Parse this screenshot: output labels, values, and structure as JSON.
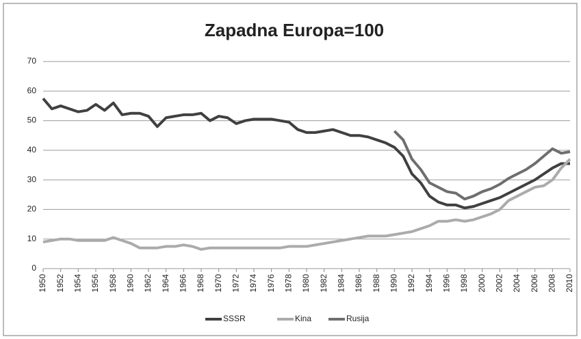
{
  "chart_data": {
    "type": "line",
    "title": "Zapadna Europa=100",
    "x": [
      1950,
      1951,
      1952,
      1953,
      1954,
      1955,
      1956,
      1957,
      1958,
      1959,
      1960,
      1961,
      1962,
      1963,
      1964,
      1965,
      1966,
      1967,
      1968,
      1969,
      1970,
      1971,
      1972,
      1973,
      1974,
      1975,
      1976,
      1977,
      1978,
      1979,
      1980,
      1981,
      1982,
      1983,
      1984,
      1985,
      1986,
      1987,
      1988,
      1989,
      1990,
      1991,
      1992,
      1993,
      1994,
      1995,
      1996,
      1997,
      1998,
      1999,
      2000,
      2001,
      2002,
      2003,
      2004,
      2005,
      2006,
      2007,
      2008,
      2009,
      2010
    ],
    "xlim": [
      1950,
      2010
    ],
    "xticks": [
      1950,
      1952,
      1954,
      1956,
      1958,
      1960,
      1962,
      1964,
      1966,
      1968,
      1970,
      1972,
      1974,
      1976,
      1978,
      1980,
      1982,
      1984,
      1986,
      1988,
      1990,
      1992,
      1994,
      1996,
      1998,
      2000,
      2002,
      2004,
      2006,
      2008,
      2010
    ],
    "ylim": [
      0,
      70
    ],
    "yticks": [
      0,
      10,
      20,
      30,
      40,
      50,
      60,
      70
    ],
    "grid": true,
    "legend": "bottom",
    "series": [
      {
        "name": "SSSR",
        "color": "#404040",
        "values": [
          57.5,
          54,
          55,
          54,
          53,
          53.5,
          55.5,
          53.5,
          56,
          52,
          52.5,
          52.5,
          51.5,
          48,
          51,
          51.5,
          52,
          52,
          52.5,
          50,
          51.5,
          51,
          49,
          50,
          50.5,
          50.5,
          50.5,
          50,
          49.5,
          47,
          46,
          46,
          46.5,
          47,
          46,
          45,
          45,
          44.5,
          43.5,
          42.5,
          41,
          38,
          32,
          29,
          24.5,
          22.5,
          21.5,
          21.5,
          20.5,
          21,
          22,
          23,
          24,
          25.5,
          27,
          28.5,
          30,
          32,
          34,
          35.5,
          35.5
        ]
      },
      {
        "name": "Kina",
        "color": "#ababab",
        "values": [
          9,
          9.5,
          10,
          10,
          9.5,
          9.5,
          9.5,
          9.5,
          10.5,
          9.5,
          8.5,
          7,
          7,
          7,
          7.5,
          7.5,
          8,
          7.5,
          6.5,
          7,
          7,
          7,
          7,
          7,
          7,
          7,
          7,
          7,
          7.5,
          7.5,
          7.5,
          8,
          8.5,
          9,
          9.5,
          10,
          10.5,
          11,
          11,
          11,
          11.5,
          12,
          12.5,
          13.5,
          14.5,
          16,
          16,
          16.5,
          16,
          16.5,
          17.5,
          18.5,
          20,
          23,
          24.5,
          26,
          27.5,
          28,
          30,
          34,
          37
        ]
      },
      {
        "name": "Rusija",
        "color": "#6e6e6e",
        "values": [
          null,
          null,
          null,
          null,
          null,
          null,
          null,
          null,
          null,
          null,
          null,
          null,
          null,
          null,
          null,
          null,
          null,
          null,
          null,
          null,
          null,
          null,
          null,
          null,
          null,
          null,
          null,
          null,
          null,
          null,
          null,
          null,
          null,
          null,
          null,
          null,
          null,
          null,
          null,
          null,
          46.5,
          43.5,
          37,
          33.5,
          29,
          27.5,
          26,
          25.5,
          23.5,
          24.5,
          26,
          27,
          28.5,
          30.5,
          32,
          33.5,
          35.5,
          38,
          40.5,
          39,
          39.5
        ]
      }
    ]
  }
}
